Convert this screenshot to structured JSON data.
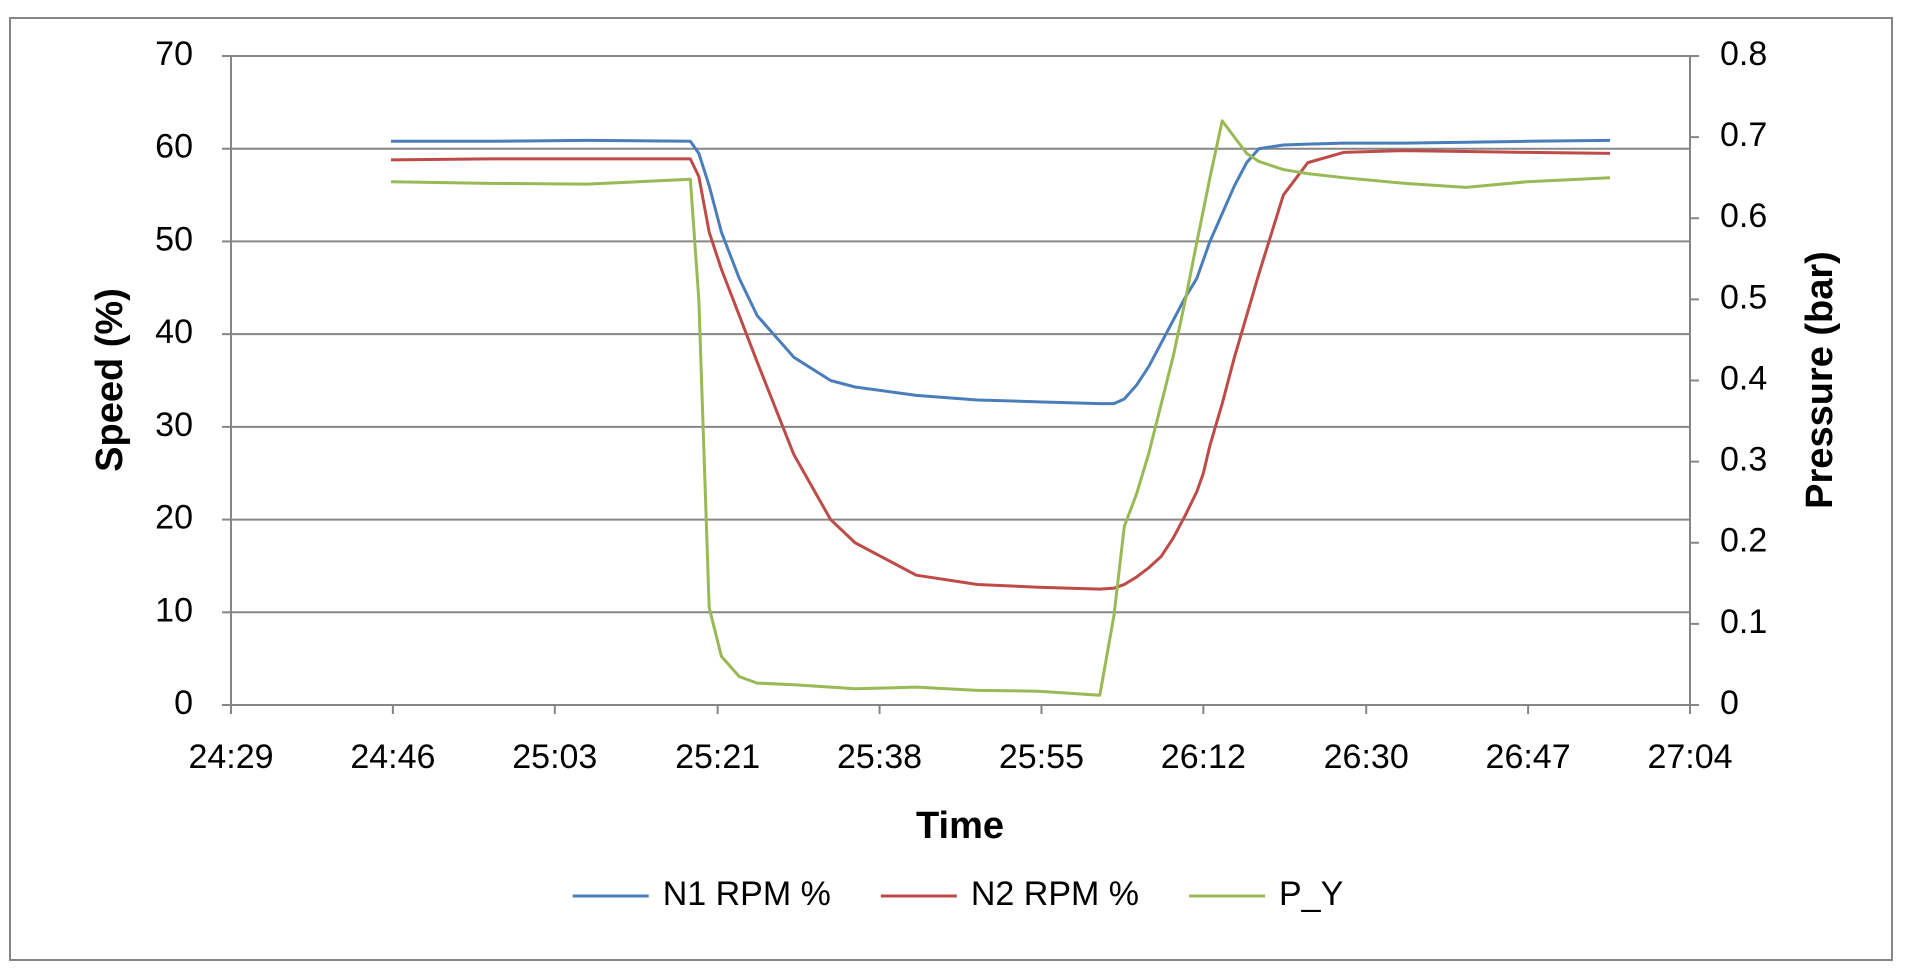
{
  "chart_data": {
    "type": "line",
    "x_label": "Time",
    "y_label": "Speed (%)",
    "y2_label": "Pressure (bar)",
    "x": [
      1486,
      1496.4,
      1506.8,
      1517.8,
      1518.7,
      1519.8,
      1521.1,
      1523.0,
      1524.9,
      1528.8,
      1532.7,
      1535.3,
      1541.8,
      1548.3,
      1554.8,
      1561.3,
      1562.8,
      1563.9,
      1565.2,
      1566.5,
      1567.8,
      1569.1,
      1570.4,
      1571.6,
      1572.3,
      1573.0,
      1574.3,
      1575.6,
      1576.9,
      1578.2,
      1580.8,
      1583.4,
      1587.2,
      1593.7,
      1600.2,
      1606.7,
      1615.5
    ],
    "series": [
      {
        "name": "N1 RPM %",
        "color": "#4a7ebb",
        "values": [
          60.8,
          60.8,
          60.9,
          60.8,
          59.5,
          56,
          51,
          46,
          42,
          37.5,
          35,
          34.3,
          33.4,
          32.9,
          32.7,
          32.5,
          32.5,
          33,
          34.5,
          36.5,
          39,
          41.5,
          44,
          46,
          48,
          50,
          53,
          56,
          58.5,
          60,
          60.4,
          60.5,
          60.6,
          60.6,
          60.7,
          60.8,
          60.9
        ]
      },
      {
        "name": "N2 RPM %",
        "color": "#be4b48",
        "values": [
          58.8,
          58.9,
          58.9,
          58.9,
          57,
          51,
          47,
          42,
          37,
          27,
          20,
          17.5,
          14,
          13,
          12.7,
          12.5,
          12.6,
          13,
          13.8,
          14.8,
          16,
          18,
          20.5,
          23,
          25,
          28,
          32.5,
          37.5,
          42,
          46.5,
          55,
          58.5,
          59.6,
          59.8,
          59.7,
          59.6,
          59.5
        ]
      },
      {
        "name": "P_Y",
        "color": "#98b954",
        "axis": "y2",
        "values": [
          0.645,
          0.643,
          0.642,
          0.648,
          0.5,
          0.12,
          0.06,
          0.035,
          0.027,
          0.025,
          0.022,
          0.02,
          0.022,
          0.018,
          0.017,
          0.012,
          0.11,
          0.22,
          0.26,
          0.31,
          0.37,
          0.43,
          0.5,
          0.57,
          0.61,
          0.65,
          0.72,
          0.7,
          0.68,
          0.67,
          0.66,
          0.655,
          0.65,
          0.643,
          0.638,
          0.645,
          0.65
        ]
      }
    ],
    "xlim": [
      1469,
      1624
    ],
    "xticks": [
      {
        "value": 1469,
        "label": "24:29"
      },
      {
        "value": 1486.2,
        "label": "24:46"
      },
      {
        "value": 1503.4,
        "label": "25:03"
      },
      {
        "value": 1520.7,
        "label": "25:21"
      },
      {
        "value": 1537.9,
        "label": "25:38"
      },
      {
        "value": 1555.1,
        "label": "25:55"
      },
      {
        "value": 1572.3,
        "label": "26:12"
      },
      {
        "value": 1589.6,
        "label": "26:30"
      },
      {
        "value": 1606.8,
        "label": "26:47"
      },
      {
        "value": 1624,
        "label": "27:04"
      }
    ],
    "ylim": [
      0,
      70
    ],
    "yticks": [
      0,
      10,
      20,
      30,
      40,
      50,
      60,
      70
    ],
    "y2lim": [
      0,
      0.8
    ],
    "y2ticks": [
      0,
      0.1,
      0.2,
      0.3,
      0.4,
      0.5,
      0.6,
      0.7,
      0.8
    ],
    "grid": true,
    "legend": "bottom"
  }
}
